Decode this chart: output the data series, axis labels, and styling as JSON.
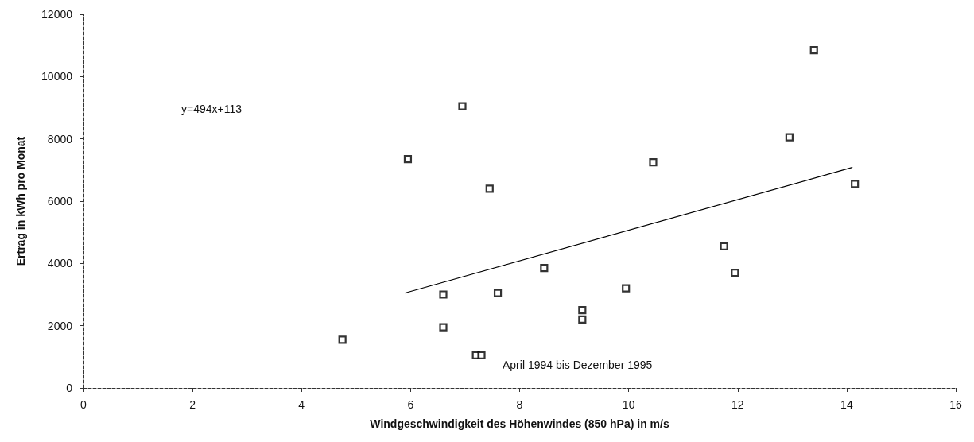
{
  "chart_data": {
    "type": "scatter",
    "xlabel": "Windgeschwindigkeit des Höhenwindes (850 hPa) in m/s",
    "ylabel": "Ertrag in kWh pro Monat",
    "annotations": [
      "y=494x+113",
      "April 1994 bis Dezember 1995"
    ],
    "series": [
      {
        "color": "#000000",
        "marker": "square",
        "x": [
          4.75,
          5.95,
          6.6,
          6.6,
          7.2,
          7.3,
          6.95,
          7.45,
          7.6,
          8.45,
          9.15,
          9.15,
          9.95,
          10.45,
          11.75,
          11.95,
          12.95,
          13.4,
          14.15
        ],
        "values": [
          1550,
          7350,
          3000,
          1950,
          1050,
          1050,
          9050,
          6400,
          3050,
          3850,
          2500,
          2200,
          3200,
          7250,
          4550,
          3700,
          8050,
          10850,
          6550
        ]
      },
      {
        "type": "line",
        "color": "#000000",
        "marker": "none",
        "line_style": "solid",
        "x": [
          5.9,
          14.1
        ],
        "values": [
          3050,
          7080
        ]
      }
    ],
    "xlim": [
      0,
      16
    ],
    "xticks": [
      0,
      2,
      4,
      6,
      8,
      10,
      12,
      14,
      16
    ],
    "ylim": [
      0,
      12000
    ],
    "yticks": [
      0,
      2000,
      4000,
      6000,
      8000,
      10000,
      12000
    ],
    "grid": false
  }
}
